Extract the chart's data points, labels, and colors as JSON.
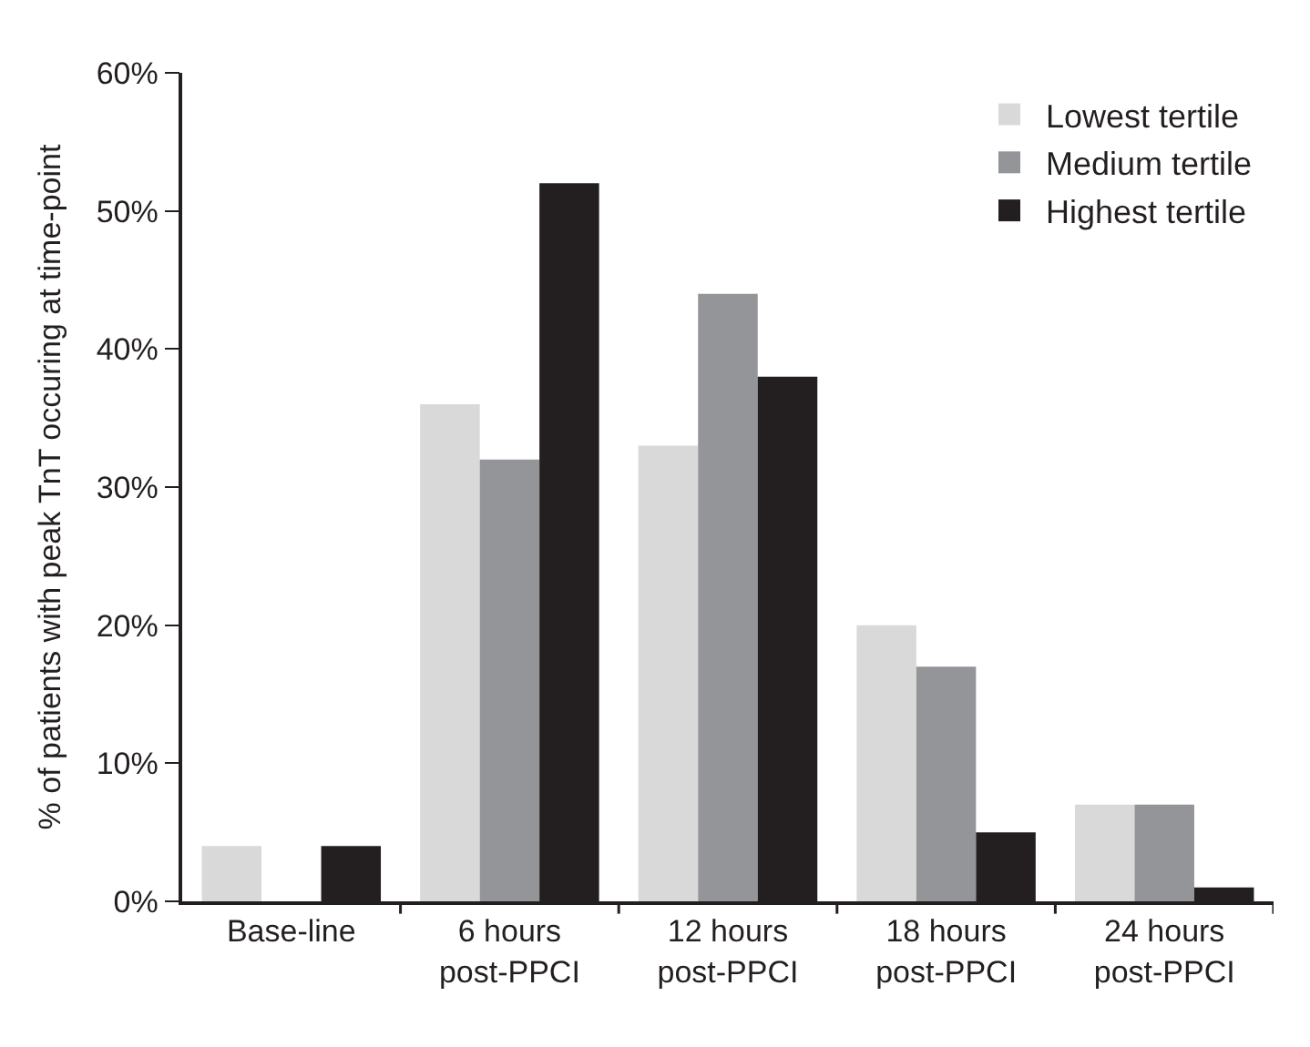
{
  "chart_data": {
    "type": "bar",
    "ylabel": "% of patients with peak TnT occuring at time-point",
    "categories": [
      "Base-line",
      "6 hours\npost-PPCI",
      "12 hours\npost-PPCI",
      "18 hours\npost-PPCI",
      "24 hours\npost-PPCI"
    ],
    "series": [
      {
        "name": "Lowest tertile",
        "color": "#d9d9d9",
        "values": [
          4,
          36,
          33,
          20,
          7
        ]
      },
      {
        "name": "Medium tertile",
        "color": "#939598",
        "values": [
          0,
          32,
          44,
          17,
          7
        ]
      },
      {
        "name": "Highest tertile",
        "color": "#231f20",
        "values": [
          4,
          52,
          38,
          5,
          1
        ]
      }
    ],
    "ylim": [
      0,
      60
    ],
    "yticks": [
      {
        "value": 0,
        "label": "0%"
      },
      {
        "value": 10,
        "label": "10%"
      },
      {
        "value": 20,
        "label": "20%"
      },
      {
        "value": 30,
        "label": "30%"
      },
      {
        "value": 40,
        "label": "40%"
      },
      {
        "value": 50,
        "label": "50%"
      },
      {
        "value": 60,
        "label": "60%"
      }
    ],
    "grid": false,
    "legend": "top right"
  }
}
